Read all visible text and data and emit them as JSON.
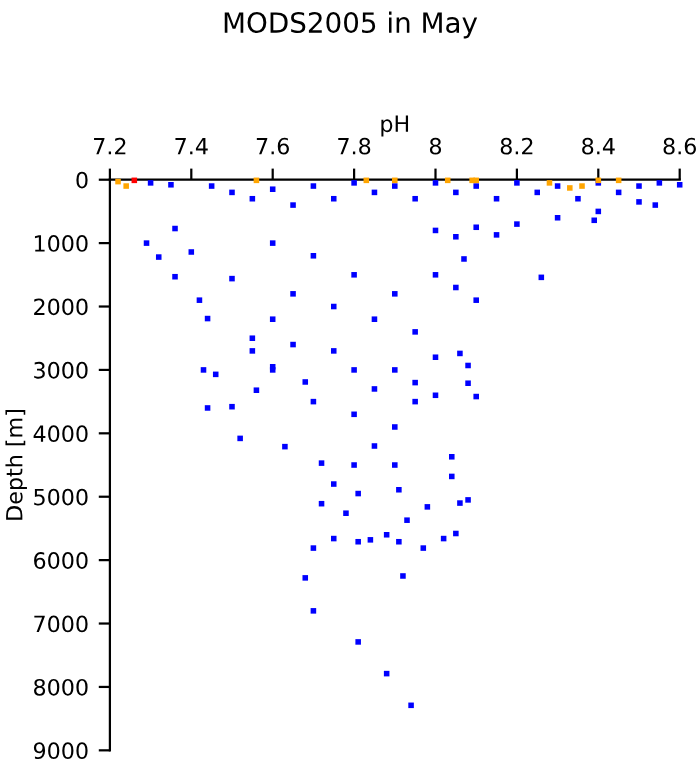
{
  "chart_data": {
    "type": "scatter",
    "title": "MODS2005 in May",
    "xlabel": "pH",
    "ylabel": "Depth [m]",
    "xlim": [
      7.2,
      8.6
    ],
    "xticks": [
      7.2,
      7.4,
      7.6,
      7.8,
      8,
      8.2,
      8.4,
      8.6
    ],
    "ylim": [
      9000,
      0
    ],
    "yticks": [
      0,
      1000,
      2000,
      3000,
      4000,
      5000,
      6000,
      7000,
      8000,
      9000
    ],
    "grid": false,
    "marker": "square",
    "series": [
      {
        "color": "#0000ff",
        "x": [
          7.3,
          7.35,
          7.45,
          7.5,
          7.55,
          7.6,
          7.65,
          7.7,
          7.75,
          7.8,
          7.85,
          7.9,
          7.95,
          8.0,
          8.05,
          8.1,
          8.15,
          8.2,
          8.25,
          8.3,
          8.35,
          8.4,
          8.45,
          8.5,
          8.55,
          8.6,
          8.5,
          8.54,
          8.4,
          8.39,
          8.3,
          8.2,
          8.15,
          8.1,
          8.0,
          8.05,
          8.26,
          7.29,
          7.32,
          7.36,
          7.42,
          7.36,
          7.4,
          7.5,
          7.44,
          7.6,
          7.7,
          7.8,
          7.9,
          8.0,
          8.05,
          7.75,
          7.85,
          7.95,
          7.65,
          8.07,
          8.1,
          7.55,
          7.6,
          7.43,
          7.46,
          7.44,
          7.5,
          7.52,
          7.63,
          7.56,
          7.6,
          7.68,
          7.68,
          7.7,
          7.7,
          7.81,
          7.88,
          7.94,
          7.92,
          7.97,
          8.02,
          8.05,
          8.08,
          8.06,
          7.98,
          7.72,
          7.75,
          7.81,
          7.84,
          7.91,
          7.88,
          7.93,
          7.72,
          7.91,
          7.81,
          7.78,
          8.04,
          8.04,
          8.1,
          8.08,
          8.08,
          8.06,
          7.8,
          7.9,
          7.85,
          7.95,
          7.8,
          7.9,
          7.85,
          7.8,
          7.75,
          7.9,
          7.95,
          8.0,
          7.7,
          7.75,
          8.0,
          7.65,
          7.55,
          7.6
        ],
        "values": [
          50,
          80,
          100,
          200,
          300,
          150,
          400,
          100,
          300,
          50,
          200,
          100,
          300,
          50,
          200,
          100,
          300,
          50,
          200,
          100,
          300,
          50,
          200,
          100,
          50,
          80,
          350,
          400,
          500,
          640,
          600,
          700,
          870,
          750,
          800,
          900,
          1540,
          1000,
          1220,
          1530,
          1900,
          770,
          1140,
          1560,
          2190,
          1000,
          1200,
          1500,
          1800,
          1500,
          1700,
          2000,
          2200,
          2400,
          1800,
          1250,
          1900,
          2500,
          2200,
          3000,
          3070,
          3600,
          3580,
          4080,
          4210,
          3320,
          2950,
          3190,
          6280,
          5810,
          6800,
          7290,
          7790,
          8290,
          6250,
          5810,
          5660,
          5580,
          5050,
          5100,
          5160,
          5110,
          5660,
          5710,
          5680,
          5710,
          5600,
          5370,
          4470,
          4890,
          4950,
          5260,
          4680,
          4370,
          3420,
          3210,
          2930,
          2740,
          3000,
          3000,
          3300,
          3500,
          3700,
          3900,
          4200,
          4500,
          4800,
          4500,
          3200,
          3400,
          3500,
          2700,
          2800,
          2600,
          2700,
          3000
        ]
      },
      {
        "color": "#ffa500",
        "x": [
          7.22,
          7.24,
          7.56,
          7.83,
          7.9,
          8.03,
          8.09,
          8.1,
          8.28,
          8.33,
          8.36,
          8.4,
          8.45
        ],
        "values": [
          30,
          100,
          10,
          10,
          10,
          10,
          10,
          10,
          50,
          130,
          100,
          10,
          10
        ]
      },
      {
        "color": "#ff0000",
        "x": [
          7.26
        ],
        "values": [
          10
        ]
      }
    ]
  }
}
